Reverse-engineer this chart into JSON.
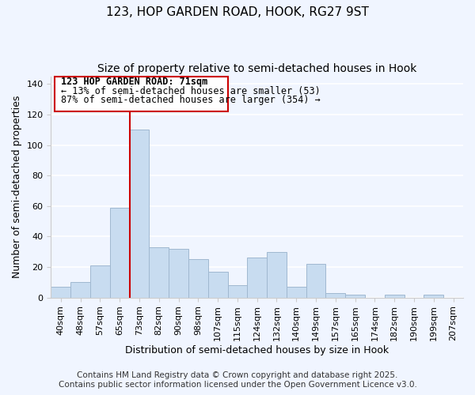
{
  "title": "123, HOP GARDEN ROAD, HOOK, RG27 9ST",
  "subtitle": "Size of property relative to semi-detached houses in Hook",
  "xlabel": "Distribution of semi-detached houses by size in Hook",
  "ylabel": "Number of semi-detached properties",
  "bar_labels": [
    "40sqm",
    "48sqm",
    "57sqm",
    "65sqm",
    "73sqm",
    "82sqm",
    "90sqm",
    "98sqm",
    "107sqm",
    "115sqm",
    "124sqm",
    "132sqm",
    "140sqm",
    "149sqm",
    "157sqm",
    "165sqm",
    "174sqm",
    "182sqm",
    "190sqm",
    "199sqm",
    "207sqm"
  ],
  "bar_values": [
    7,
    10,
    21,
    59,
    110,
    33,
    32,
    25,
    17,
    8,
    26,
    30,
    7,
    22,
    3,
    2,
    0,
    2,
    0,
    2,
    0
  ],
  "bar_color": "#c8dcf0",
  "bar_edge_color": "#a0b8d0",
  "vline_x_idx": 4,
  "vline_color": "#cc0000",
  "ylim": [
    0,
    145
  ],
  "yticks": [
    0,
    20,
    40,
    60,
    80,
    100,
    120,
    140
  ],
  "annotation_title": "123 HOP GARDEN ROAD: 71sqm",
  "annotation_line1": "← 13% of semi-detached houses are smaller (53)",
  "annotation_line2": "87% of semi-detached houses are larger (354) →",
  "footnote1": "Contains HM Land Registry data © Crown copyright and database right 2025.",
  "footnote2": "Contains public sector information licensed under the Open Government Licence v3.0.",
  "background_color": "#f0f5ff",
  "grid_color": "#ffffff",
  "title_fontsize": 11,
  "subtitle_fontsize": 10,
  "axis_label_fontsize": 9,
  "tick_fontsize": 8,
  "annotation_title_fontsize": 8.5,
  "annotation_body_fontsize": 8.5,
  "footnote_fontsize": 7.5
}
